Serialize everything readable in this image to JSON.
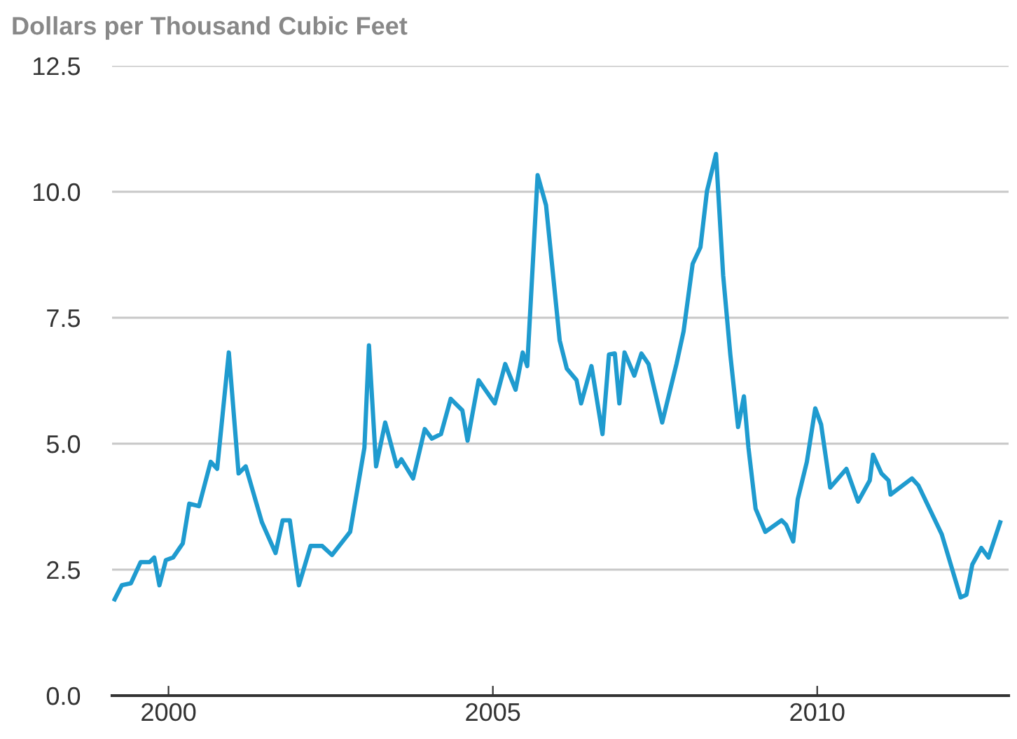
{
  "chart_data": {
    "type": "line",
    "title": "Dollars per Thousand Cubic Feet",
    "x": [
      1999.17,
      1999.28,
      1999.42,
      1999.57,
      1999.71,
      1999.78,
      1999.86,
      1999.96,
      2000.07,
      2000.22,
      2000.32,
      2000.47,
      2000.65,
      2000.75,
      2000.93,
      2001.08,
      2001.19,
      2001.44,
      2001.65,
      2001.76,
      2001.87,
      2002.01,
      2002.19,
      2002.37,
      2002.52,
      2002.8,
      2003.02,
      2003.09,
      2003.2,
      2003.34,
      2003.52,
      2003.59,
      2003.77,
      2003.95,
      2004.06,
      2004.2,
      2004.35,
      2004.53,
      2004.61,
      2004.78,
      2005.03,
      2005.19,
      2005.35,
      2005.46,
      2005.53,
      2005.69,
      2005.82,
      2006.03,
      2006.14,
      2006.29,
      2006.36,
      2006.52,
      2006.69,
      2006.79,
      2006.88,
      2006.95,
      2007.03,
      2007.18,
      2007.29,
      2007.4,
      2007.61,
      2007.83,
      2007.94,
      2008.08,
      2008.2,
      2008.3,
      2008.44,
      2008.55,
      2008.66,
      2008.78,
      2008.87,
      2008.94,
      2009.05,
      2009.2,
      2009.45,
      2009.52,
      2009.63,
      2009.7,
      2009.84,
      2009.97,
      2010.06,
      2010.2,
      2010.45,
      2010.63,
      2010.81,
      2010.86,
      2010.99,
      2011.1,
      2011.13,
      2011.46,
      2011.56,
      2011.92,
      2012.21,
      2012.3,
      2012.39,
      2012.53,
      2012.64,
      2012.82
    ],
    "series": [
      {
        "color": "#1f9bcf",
        "values": [
          1.91,
          2.19,
          2.23,
          2.65,
          2.65,
          2.74,
          2.19,
          2.69,
          2.74,
          3.02,
          3.81,
          3.76,
          4.64,
          4.5,
          6.81,
          4.41,
          4.55,
          3.44,
          2.83,
          3.48,
          3.48,
          2.19,
          2.97,
          2.97,
          2.79,
          3.25,
          4.92,
          6.95,
          4.55,
          5.42,
          4.55,
          4.69,
          4.31,
          5.29,
          5.1,
          5.19,
          5.89,
          5.66,
          5.06,
          6.26,
          5.8,
          6.58,
          6.07,
          6.81,
          6.54,
          10.33,
          9.73,
          7.05,
          6.49,
          6.26,
          5.8,
          6.54,
          5.19,
          6.77,
          6.79,
          5.8,
          6.81,
          6.35,
          6.79,
          6.58,
          5.42,
          6.58,
          7.23,
          8.57,
          8.9,
          10.01,
          10.75,
          8.34,
          6.77,
          5.33,
          5.94,
          4.92,
          3.71,
          3.25,
          3.48,
          3.39,
          3.06,
          3.9,
          4.64,
          5.7,
          5.38,
          4.13,
          4.5,
          3.85,
          4.27,
          4.78,
          4.41,
          4.27,
          3.99,
          4.31,
          4.17,
          3.2,
          1.95,
          2.0,
          2.6,
          2.93,
          2.74,
          3.44
        ]
      }
    ],
    "xlim": [
      1999.13,
      2012.95
    ],
    "xticks": [
      2000,
      2005,
      2010
    ],
    "ylim": [
      0,
      12.5
    ],
    "yticks": [
      {
        "value": 0,
        "label": "0.0"
      },
      2.5,
      {
        "value": 5,
        "label": "5.0"
      },
      7.5,
      {
        "value": 10,
        "label": "10.0"
      },
      12.5
    ],
    "grid": "y",
    "legend": false,
    "marker": "none",
    "line_style": "solid"
  }
}
